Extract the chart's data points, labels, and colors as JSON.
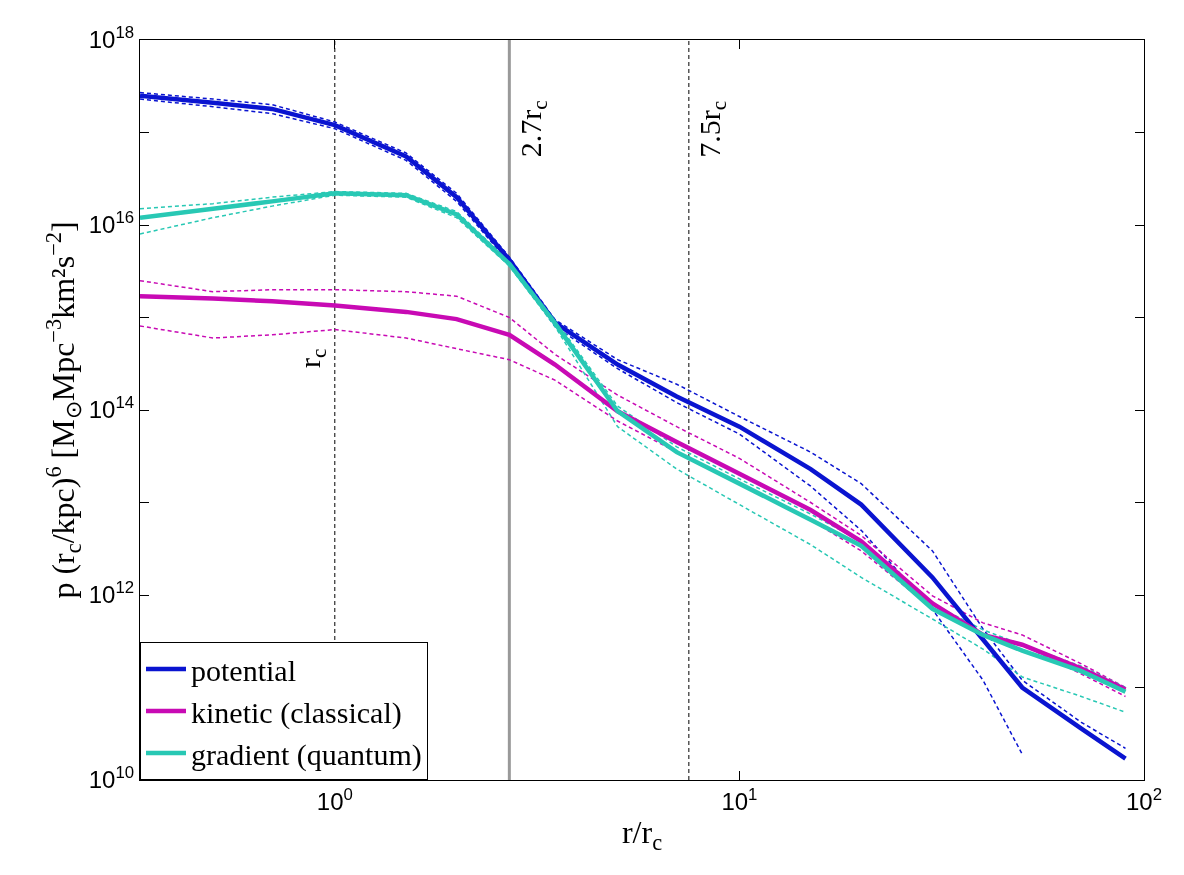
{
  "chart_data": {
    "type": "line",
    "xlabel": "r/r$_{c}$",
    "ylabel": "p (r$_{c}$/kpc)$^{6}$ [M$_{⊙}$Mpc$^{−3}$km²s$^{−2}$]",
    "x": [
      0.33,
      0.5,
      0.7,
      1,
      1.5,
      2,
      2.7,
      3.5,
      5,
      7,
      10,
      15,
      20,
      30,
      40,
      50,
      70,
      90
    ],
    "series": [
      {
        "color": "#0a14d0",
        "line_style": "dashed",
        "x": [
          0.33,
          0.5,
          0.7,
          1,
          1.5,
          2,
          2.7,
          3.5,
          5,
          7,
          10,
          15,
          20,
          30,
          40,
          50
        ],
        "values": [
          2.3e+17,
          1.9e+17,
          1.6e+17,
          1.1e+17,
          5e+16,
          1.8e+16,
          3900000000000000.0,
          800000000000000.0,
          280000000000000.0,
          120000000000000.0,
          55000000000000.0,
          15000000000000.0,
          5000000000000.0,
          700000000000.0,
          120000000000.0,
          19000000000.0
        ]
      },
      {
        "color": "#0a14d0",
        "line_style": "dashed",
        "values": [
          2.7e+17,
          2.3e+17,
          2e+17,
          1.3e+17,
          6e+16,
          2.2e+16,
          4500000000000000.0,
          950000000000000.0,
          350000000000000.0,
          190000000000000.0,
          85000000000000.0,
          35000000000000.0,
          16000000000000.0,
          3000000000000.0,
          430000000000.0,
          120000000000.0,
          42000000000.0,
          22000000000.0
        ]
      },
      {
        "color": "#c80ab4",
        "line_style": "dashed",
        "values": [
          810000000000000.0,
          600000000000000.0,
          650000000000000.0,
          740000000000000.0,
          600000000000000.0,
          460000000000000.0,
          350000000000000.0,
          210000000000000.0,
          76000000000000.0,
          35000000000000.0,
          16000000000000.0,
          6500000000000.0,
          3000000000000.0,
          710000000000.0,
          360000000000.0,
          290000000000.0,
          140000000000.0,
          80000000000.0
        ]
      },
      {
        "color": "#c80ab4",
        "line_style": "dashed",
        "values": [
          2500000000000000.0,
          1900000000000000.0,
          2000000000000000.0,
          2000000000000000.0,
          1900000000000000.0,
          1700000000000000.0,
          1000000000000000.0,
          400000000000000.0,
          145000000000000.0,
          66000000000000.0,
          30000000000000.0,
          10000000000000.0,
          4400000000000.0,
          980000000000.0,
          500000000000.0,
          370000000000.0,
          180000000000.0,
          100000000000.0
        ]
      },
      {
        "color": "#28c8b4",
        "line_style": "dashed",
        "values": [
          8000000000000000.0,
          1.2e+16,
          1.6e+16,
          2.1e+16,
          2e+16,
          1.2e+16,
          3600000000000000.0,
          800000000000000.0,
          66000000000000.0,
          23000000000000.0,
          9500000000000.0,
          3500000000000.0,
          1550000000000.0,
          550000000000.0,
          260000000000.0,
          130000000000.0,
          80000000000.0,
          54000000000.0
        ]
      },
      {
        "color": "#28c8b4",
        "line_style": "dashed",
        "values": [
          1.5e+16,
          1.7e+16,
          2e+16,
          2.3e+16,
          2.2e+16,
          1.4e+16,
          4000000000000000.0,
          950000000000000.0,
          110000000000000.0,
          40000000000000.0,
          18000000000000.0,
          7500000000000.0,
          3800000000000.0,
          800000000000.0,
          420000000000.0,
          290000000000.0,
          170000000000.0,
          100000000000.0
        ]
      },
      {
        "name": "potential",
        "color": "#0a14d0",
        "values": [
          2.5e+17,
          2.1e+17,
          1.8e+17,
          1.2e+17,
          5.5e+16,
          2e+16,
          4200000000000000.0,
          880000000000000.0,
          310000000000000.0,
          140000000000000.0,
          66000000000000.0,
          23000000000000.0,
          9500000000000.0,
          1550000000000.0,
          330000000000.0,
          100000000000.0,
          36000000000.0,
          17000000000.0
        ]
      },
      {
        "name": "kinetic (classical)",
        "color": "#c80ab4",
        "values": [
          1700000000000000.0,
          1600000000000000.0,
          1500000000000000.0,
          1350000000000000.0,
          1150000000000000.0,
          960000000000000.0,
          650000000000000.0,
          310000000000000.0,
          97000000000000.0,
          45000000000000.0,
          20500000000000.0,
          8300000000000.0,
          3800000000000.0,
          810000000000.0,
          370000000000.0,
          290000000000.0,
          160000000000.0,
          95000000000.0
        ]
      },
      {
        "name": "gradient (quantum)",
        "color": "#28c8b4",
        "values": [
          1.2e+16,
          1.5e+16,
          1.8e+16,
          2.2e+16,
          2.1e+16,
          1.3e+16,
          3800000000000000.0,
          870000000000000.0,
          97000000000000.0,
          35000000000000.0,
          16000000000000.0,
          6500000000000.0,
          3400000000000.0,
          710000000000.0,
          370000000000.0,
          250000000000.0,
          150000000000.0,
          90000000000.0
        ]
      }
    ],
    "log": "xy",
    "xlim": [
      0.33,
      100
    ],
    "ylim": [
      10000000000.0,
      1e+18
    ],
    "xticks": [
      {
        "value": 1,
        "label": "10$^{0}$"
      },
      {
        "value": 10,
        "label": "10$^{1}$"
      },
      {
        "value": 100,
        "label": "10$^{2}$"
      }
    ],
    "yticks": [
      {
        "value": 10000000000.0,
        "label": "10$^{10}$"
      },
      {
        "value": 100000000000.0,
        "label": null
      },
      {
        "value": 1000000000000.0,
        "label": "10$^{12}$"
      },
      {
        "value": 10000000000000.0,
        "label": null
      },
      {
        "value": 100000000000000.0,
        "label": "10$^{14}$"
      },
      {
        "value": 1000000000000000.0,
        "label": null
      },
      {
        "value": 1e+16,
        "label": "10$^{16}$"
      },
      {
        "value": 1e+17,
        "label": null
      },
      {
        "value": 1e+18,
        "label": "10$^{18}$"
      }
    ],
    "ref_lines": [
      {
        "axis": "x",
        "value": 1,
        "label": "r$_{c}$",
        "color": "#000000",
        "line_style": "dashed"
      },
      {
        "axis": "x",
        "value": 2.7,
        "label": "2.7r$_{c}$",
        "color": "#999999",
        "line_style": "solid"
      },
      {
        "axis": "x",
        "value": 7.5,
        "label": "7.5r$_{c}$",
        "color": "#000000",
        "line_style": "dashed"
      }
    ],
    "line_style": "solid",
    "marker": "none",
    "grid": false,
    "legend": "bottom left"
  }
}
